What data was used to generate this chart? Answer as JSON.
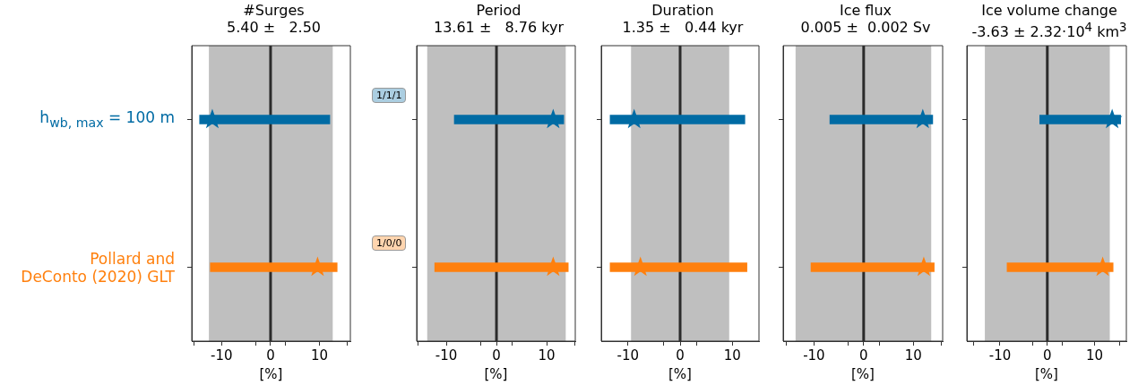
{
  "chart_data": [
    {
      "type": "bar",
      "orientation": "horizontal",
      "title": "#Surges",
      "subtitle": "5.40 ±   2.50",
      "xlabel": "[%]",
      "categories": [
        "h$_{wb, max}$ = 100 m",
        "Pollard and\nDeConto (2020) GLT"
      ],
      "series": [
        {
          "values": [
            26.6,
            25.9
          ],
          "base": [
            -14.5,
            -12.3
          ],
          "colors": [
            "#006ba4",
            "#ff800e"
          ]
        },
        {
          "type": "scatter",
          "marker": "star",
          "values": [
            -11.9,
            9.6
          ],
          "colors": [
            "#006ba4",
            "#ff800e"
          ]
        }
      ],
      "bands": [
        {
          "axis": "x",
          "from": -12.6,
          "to": 12.7,
          "color": "#bfbfbf"
        }
      ],
      "ref_lines": [
        {
          "axis": "x",
          "value": 0,
          "color": "#2b2b2b"
        }
      ],
      "xlim": [
        -16.1,
        16.3
      ],
      "xticks": [
        {
          "value": -15.6,
          "label": null
        },
        -10,
        {
          "value": -3.1,
          "label": null
        },
        0,
        {
          "value": 3.1,
          "label": null
        },
        10,
        {
          "value": 15.6,
          "label": null
        }
      ]
    },
    {
      "type": "bar",
      "orientation": "horizontal",
      "title": "Period",
      "subtitle": "13.61 ±   8.76 kyr",
      "xlabel": "[%]",
      "categories": [
        null,
        null
      ],
      "tick_labels": "x",
      "annotations": [
        "1/1/1",
        "1/0/0"
      ],
      "series": [
        {
          "values": [
            21.8,
            26.6
          ],
          "base": [
            -8.4,
            -12.3
          ],
          "colors": [
            "#006ba4",
            "#ff800e"
          ]
        },
        {
          "type": "scatter",
          "marker": "star",
          "values": [
            11.3,
            11.3
          ],
          "colors": [
            "#006ba4",
            "#ff800e"
          ]
        }
      ],
      "bands": [
        {
          "axis": "x",
          "from": -13.8,
          "to": 13.8,
          "color": "#bfbfbf"
        }
      ],
      "ref_lines": [
        {
          "axis": "x",
          "value": 0,
          "color": "#2b2b2b"
        }
      ],
      "xlim": [
        -15.9,
        15.7
      ],
      "xticks": [
        {
          "value": -15.6,
          "label": null
        },
        -10,
        {
          "value": -3.1,
          "label": null
        },
        0,
        {
          "value": 3.1,
          "label": null
        },
        10,
        {
          "value": 15.6,
          "label": null
        }
      ]
    },
    {
      "type": "bar",
      "orientation": "horizontal",
      "title": "Duration",
      "subtitle": "1.35 ±   0.44 kyr",
      "xlabel": "[%]",
      "categories": [
        null,
        null
      ],
      "tick_labels": "x",
      "series": [
        {
          "values": [
            25.8,
            26.2
          ],
          "base": [
            -13.4,
            -13.4
          ],
          "colors": [
            "#006ba4",
            "#ff800e"
          ]
        },
        {
          "type": "scatter",
          "marker": "star",
          "values": [
            -8.8,
            -7.6
          ],
          "colors": [
            "#006ba4",
            "#ff800e"
          ]
        }
      ],
      "bands": [
        {
          "axis": "x",
          "from": -9.4,
          "to": 9.4,
          "color": "#bfbfbf"
        }
      ],
      "ref_lines": [
        {
          "axis": "x",
          "value": 0,
          "color": "#2b2b2b"
        }
      ],
      "xlim": [
        -15.1,
        15.1
      ],
      "xticks": [
        -10,
        {
          "value": -3.1,
          "label": null
        },
        0,
        {
          "value": 3.1,
          "label": null
        },
        10
      ]
    },
    {
      "type": "bar",
      "orientation": "horizontal",
      "title": "Ice flux",
      "subtitle": "0.005 ±  0.002 Sv",
      "xlabel": "[%]",
      "categories": [
        null,
        null
      ],
      "tick_labels": "x",
      "series": [
        {
          "values": [
            20.7,
            24.8
          ],
          "base": [
            -6.8,
            -10.6
          ],
          "colors": [
            "#006ba4",
            "#ff800e"
          ]
        },
        {
          "type": "scatter",
          "marker": "star",
          "values": [
            11.9,
            12.1
          ],
          "colors": [
            "#006ba4",
            "#ff800e"
          ]
        }
      ],
      "bands": [
        {
          "axis": "x",
          "from": -13.7,
          "to": 13.6,
          "color": "#bfbfbf"
        }
      ],
      "ref_lines": [
        {
          "axis": "x",
          "value": 0,
          "color": "#2b2b2b"
        }
      ],
      "xlim": [
        -16.2,
        15.9
      ],
      "xticks": [
        {
          "value": -15.6,
          "label": null
        },
        -10,
        {
          "value": -3.1,
          "label": null
        },
        0,
        {
          "value": 3.1,
          "label": null
        },
        10,
        {
          "value": 15.6,
          "label": null
        }
      ]
    },
    {
      "type": "bar",
      "orientation": "horizontal",
      "title": "Ice volume change",
      "subtitle": "-3.63 ± 2.32·10$^{4}$ km$^{3}$",
      "xlabel": "[%]",
      "categories": [
        null,
        null
      ],
      "tick_labels": "x",
      "series": [
        {
          "values": [
            17.1,
            22.4
          ],
          "base": [
            -1.6,
            -8.5
          ],
          "colors": [
            "#006ba4",
            "#ff800e"
          ]
        },
        {
          "type": "scatter",
          "marker": "star",
          "values": [
            13.7,
            11.7
          ],
          "colors": [
            "#006ba4",
            "#ff800e"
          ]
        }
      ],
      "bands": [
        {
          "axis": "x",
          "from": -13.2,
          "to": 13.2,
          "color": "#bfbfbf"
        }
      ],
      "ref_lines": [
        {
          "axis": "x",
          "value": 0,
          "color": "#2b2b2b"
        }
      ],
      "xlim": [
        -17.0,
        16.7
      ],
      "xticks": [
        {
          "value": -15.5,
          "label": null
        },
        -10,
        {
          "value": -3.1,
          "label": null
        },
        0,
        {
          "value": 3.1,
          "label": null
        },
        10,
        {
          "value": 15.3,
          "label": null
        }
      ]
    }
  ]
}
